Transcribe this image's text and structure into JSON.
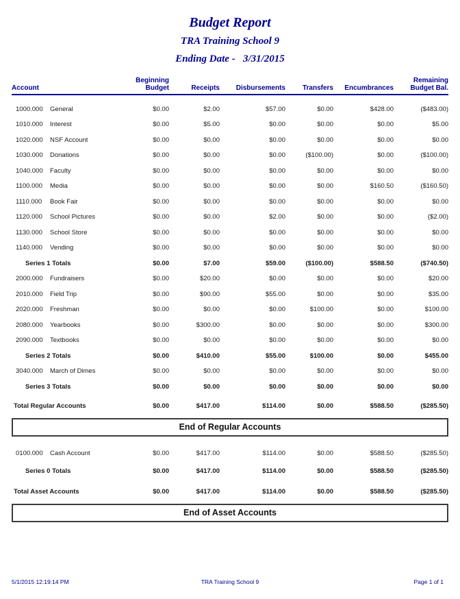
{
  "colors": {
    "navy": "#000090",
    "text": "#1a1a1a",
    "banner_border": "#3c3c3c",
    "background": "#ffffff"
  },
  "header": {
    "title": "Budget Report",
    "subtitle": "TRA Training School 9",
    "ending_date": "Ending Date -   3/31/2015"
  },
  "table": {
    "columns": [
      {
        "label": "Account"
      },
      {
        "label": "Beginning\nBudget"
      },
      {
        "label": "Receipts"
      },
      {
        "label": "Disbursements"
      },
      {
        "label": "Transfers"
      },
      {
        "label": "Encumbrances"
      },
      {
        "label": "Remaining\nBudget Bal."
      }
    ],
    "sections": [
      {
        "name": "regular-accounts",
        "rows": [
          {
            "type": "account",
            "number": "1000.000",
            "name": "General",
            "values": [
              "$0.00",
              "$2.00",
              "$57.00",
              "$0.00",
              "$428.00",
              "($483.00)"
            ]
          },
          {
            "type": "account",
            "number": "1010.000",
            "name": "Interest",
            "values": [
              "$0.00",
              "$5.00",
              "$0.00",
              "$0.00",
              "$0.00",
              "$5.00"
            ]
          },
          {
            "type": "account",
            "number": "1020.000",
            "name": "NSF Account",
            "values": [
              "$0.00",
              "$0.00",
              "$0.00",
              "$0.00",
              "$0.00",
              "$0.00"
            ]
          },
          {
            "type": "account",
            "number": "1030.000",
            "name": "Donations",
            "values": [
              "$0.00",
              "$0.00",
              "$0.00",
              "($100.00)",
              "$0.00",
              "($100.00)"
            ]
          },
          {
            "type": "account",
            "number": "1040.000",
            "name": "Faculty",
            "values": [
              "$0.00",
              "$0.00",
              "$0.00",
              "$0.00",
              "$0.00",
              "$0.00"
            ]
          },
          {
            "type": "account",
            "number": "1100.000",
            "name": "Media",
            "values": [
              "$0.00",
              "$0.00",
              "$0.00",
              "$0.00",
              "$160.50",
              "($160.50)"
            ]
          },
          {
            "type": "account",
            "number": "1110.000",
            "name": "Book Fair",
            "values": [
              "$0.00",
              "$0.00",
              "$0.00",
              "$0.00",
              "$0.00",
              "$0.00"
            ]
          },
          {
            "type": "account",
            "number": "1120.000",
            "name": "School Pictures",
            "values": [
              "$0.00",
              "$0.00",
              "$2.00",
              "$0.00",
              "$0.00",
              "($2.00)"
            ]
          },
          {
            "type": "account",
            "number": "1130.000",
            "name": "School Store",
            "values": [
              "$0.00",
              "$0.00",
              "$0.00",
              "$0.00",
              "$0.00",
              "$0.00"
            ]
          },
          {
            "type": "account",
            "number": "1140.000",
            "name": "Vending",
            "values": [
              "$0.00",
              "$0.00",
              "$0.00",
              "$0.00",
              "$0.00",
              "$0.00"
            ]
          },
          {
            "type": "series-total",
            "label": "Series 1 Totals",
            "values": [
              "$0.00",
              "$7.00",
              "$59.00",
              "($100.00)",
              "$588.50",
              "($740.50)"
            ]
          },
          {
            "type": "account",
            "number": "2000.000",
            "name": "Fundraisers",
            "values": [
              "$0.00",
              "$20.00",
              "$0.00",
              "$0.00",
              "$0.00",
              "$20.00"
            ]
          },
          {
            "type": "account",
            "number": "2010.000",
            "name": "Field Trip",
            "values": [
              "$0.00",
              "$90.00",
              "$55.00",
              "$0.00",
              "$0.00",
              "$35.00"
            ]
          },
          {
            "type": "account",
            "number": "2020.000",
            "name": "Freshman",
            "values": [
              "$0.00",
              "$0.00",
              "$0.00",
              "$100.00",
              "$0.00",
              "$100.00"
            ]
          },
          {
            "type": "account",
            "number": "2080.000",
            "name": "Yearbooks",
            "values": [
              "$0.00",
              "$300.00",
              "$0.00",
              "$0.00",
              "$0.00",
              "$300.00"
            ]
          },
          {
            "type": "account",
            "number": "2090.000",
            "name": "Textbooks",
            "values": [
              "$0.00",
              "$0.00",
              "$0.00",
              "$0.00",
              "$0.00",
              "$0.00"
            ]
          },
          {
            "type": "series-total",
            "label": "Series 2 Totals",
            "values": [
              "$0.00",
              "$410.00",
              "$55.00",
              "$100.00",
              "$0.00",
              "$455.00"
            ]
          },
          {
            "type": "account",
            "number": "3040.000",
            "name": "March of Dimes",
            "values": [
              "$0.00",
              "$0.00",
              "$0.00",
              "$0.00",
              "$0.00",
              "$0.00"
            ]
          },
          {
            "type": "series-total",
            "label": "Series 3 Totals",
            "values": [
              "$0.00",
              "$0.00",
              "$0.00",
              "$0.00",
              "$0.00",
              "$0.00"
            ]
          },
          {
            "type": "group-total",
            "label": "Total Regular Accounts",
            "values": [
              "$0.00",
              "$417.00",
              "$114.00",
              "$0.00",
              "$588.50",
              "($285.50)"
            ]
          }
        ],
        "banner": "End of Regular Accounts"
      },
      {
        "name": "asset-accounts",
        "rows": [
          {
            "type": "account",
            "number": "0100.000",
            "name": "Cash Account",
            "values": [
              "$0.00",
              "$417.00",
              "$114.00",
              "$0.00",
              "$588.50",
              "($285.50)"
            ]
          },
          {
            "type": "series-total",
            "label": "Series 0 Totals",
            "values": [
              "$0.00",
              "$417.00",
              "$114.00",
              "$0.00",
              "$588.50",
              "($285.50)"
            ]
          },
          {
            "type": "group-total",
            "label": "Total Asset Accounts",
            "values": [
              "$0.00",
              "$417.00",
              "$114.00",
              "$0.00",
              "$588.50",
              "($285.50)"
            ]
          }
        ],
        "banner": "End of Asset Accounts"
      }
    ]
  },
  "footer": {
    "datetime": "5/1/2015 12:19:14 PM",
    "school": "TRA Training School 9",
    "page": "Page 1 of 1"
  }
}
